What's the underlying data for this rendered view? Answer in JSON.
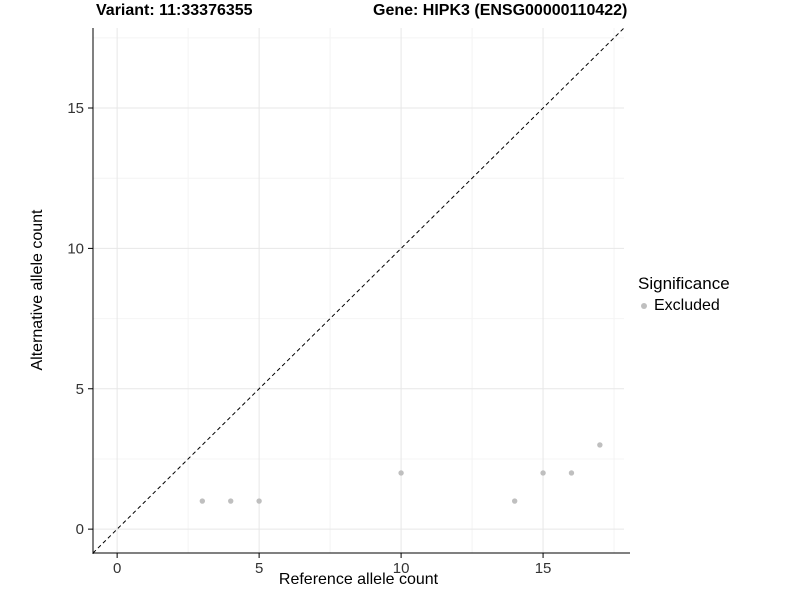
{
  "chart_data": {
    "type": "scatter",
    "title_left": "Variant: 11:33376355",
    "title_right": "Gene: HIPK3 (ENSG00000110422)",
    "xlabel": "Reference allele count",
    "ylabel": "Alternative allele count",
    "xlim": [
      -0.85,
      17.85
    ],
    "ylim": [
      -0.85,
      17.85
    ],
    "x_major_ticks": [
      0,
      5,
      10,
      15
    ],
    "y_major_ticks": [
      0,
      5,
      10,
      15
    ],
    "x_minor_ticks": [
      2.5,
      7.5,
      12.5,
      17.5
    ],
    "y_minor_ticks": [
      2.5,
      7.5,
      12.5,
      17.5
    ],
    "grid": true,
    "reference_line": {
      "equation": "y = x",
      "style": "dashed",
      "color": "#000000"
    },
    "series": [
      {
        "name": "Excluded",
        "color": "#bfbfbf",
        "points": [
          [
            3,
            1
          ],
          [
            4,
            1
          ],
          [
            5,
            1
          ],
          [
            10,
            2
          ],
          [
            14,
            1
          ],
          [
            15,
            2
          ],
          [
            16,
            2
          ],
          [
            17,
            3
          ]
        ]
      }
    ],
    "legend": {
      "title": "Significance",
      "position": "right",
      "items": [
        {
          "label": "Excluded",
          "color": "#bfbfbf"
        }
      ]
    },
    "colors": {
      "grid_major": "#e7e7e7",
      "grid_minor": "#f4f4f4",
      "axis_line": "#000000",
      "tick_label": "#333333",
      "background": "#ffffff"
    }
  }
}
